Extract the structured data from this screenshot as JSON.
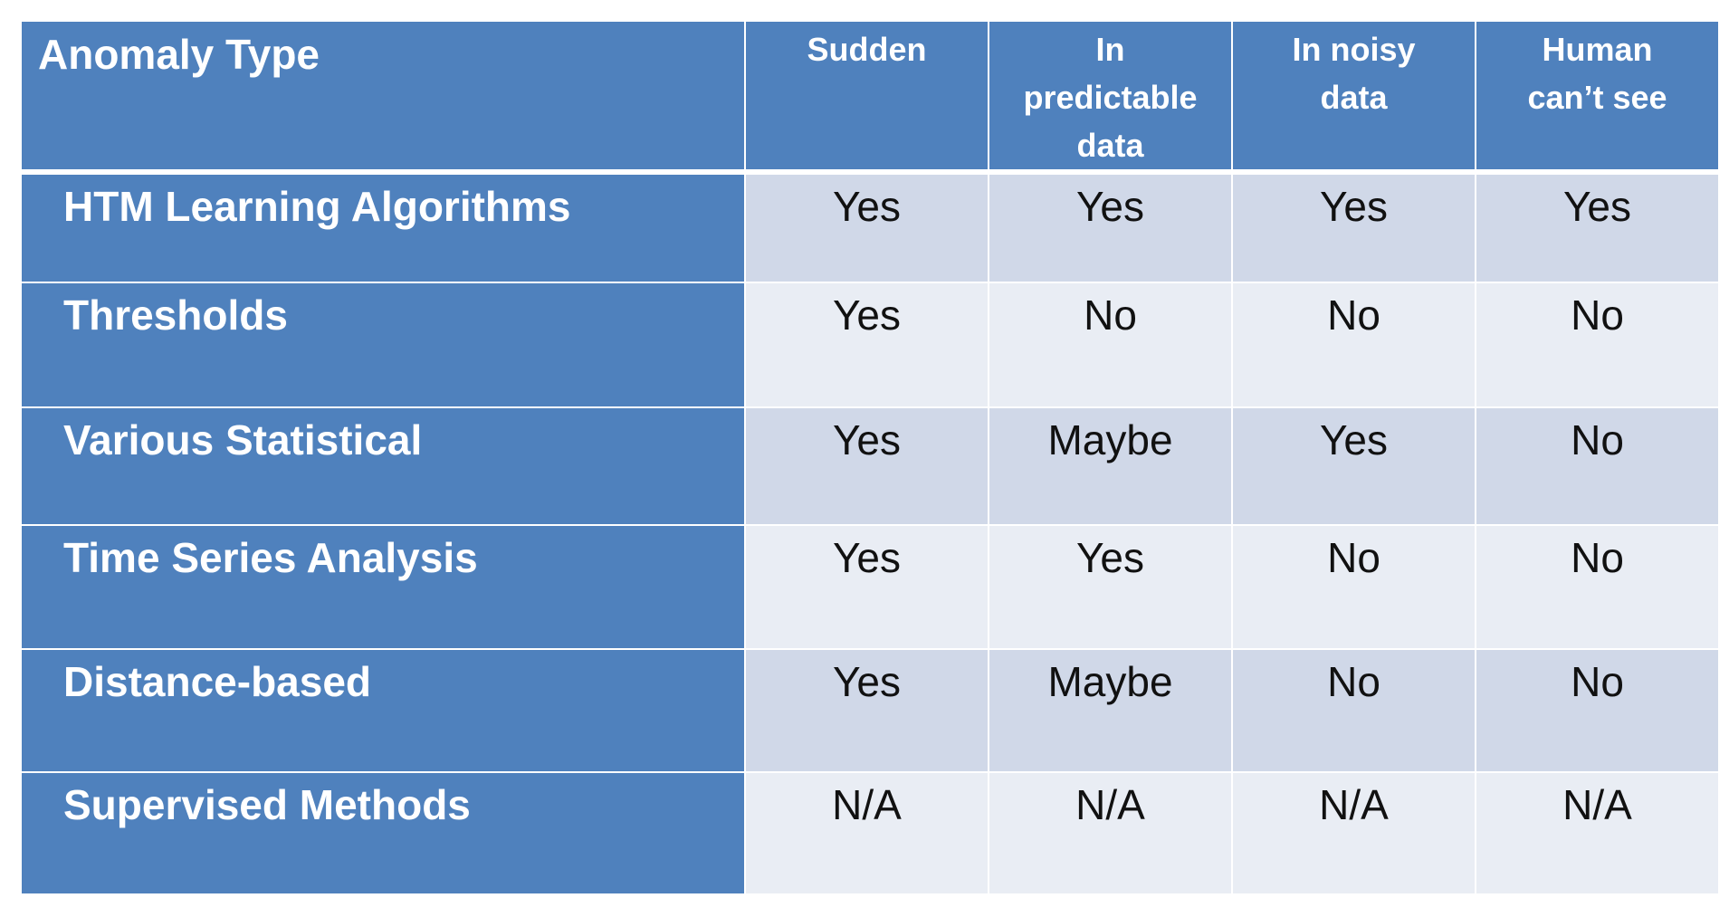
{
  "table": {
    "header": {
      "label": "Anomaly Type",
      "columns": [
        [
          "Sudden"
        ],
        [
          "In",
          "predictable",
          "data"
        ],
        [
          "In noisy",
          "data"
        ],
        [
          "Human",
          "can’t see"
        ]
      ]
    },
    "rows": [
      {
        "label": "HTM Learning Algorithms",
        "values": [
          "Yes",
          "Yes",
          "Yes",
          "Yes"
        ]
      },
      {
        "label": "Thresholds",
        "values": [
          "Yes",
          "No",
          "No",
          "No"
        ]
      },
      {
        "label": "Various Statistical",
        "values": [
          "Yes",
          "Maybe",
          "Yes",
          "No"
        ]
      },
      {
        "label": "Time Series Analysis",
        "values": [
          "Yes",
          "Yes",
          "No",
          "No"
        ]
      },
      {
        "label": "Distance-based",
        "values": [
          "Yes",
          "Maybe",
          "No",
          "No"
        ]
      },
      {
        "label": "Supervised Methods",
        "values": [
          "N/A",
          "N/A",
          "N/A",
          "N/A"
        ]
      }
    ],
    "colors": {
      "header_bg": "#4f81bd",
      "row_odd_bg": "#d0d8e8",
      "row_even_bg": "#e9edf4",
      "text_light": "#ffffff",
      "text_dark": "#111111"
    }
  }
}
